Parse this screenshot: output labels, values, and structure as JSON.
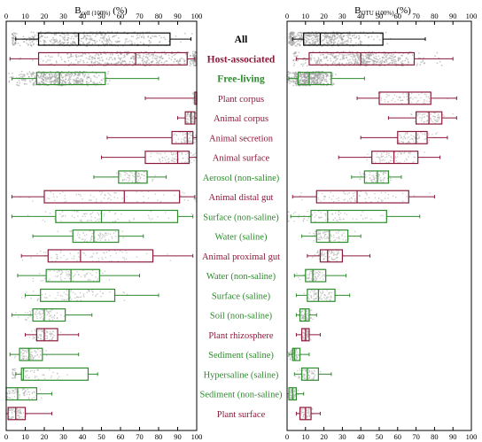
{
  "chart_data": {
    "type": "boxplot",
    "panels": [
      {
        "id": "bcell",
        "title_main": "B",
        "title_sub": "cell (100%)",
        "title_unit": " (%)",
        "xlim": [
          0,
          100
        ],
        "xticks": [
          0,
          10,
          20,
          30,
          40,
          50,
          60,
          70,
          80,
          90,
          100
        ]
      },
      {
        "id": "botu",
        "title_main": "B",
        "title_sub": "OTU (100%)",
        "title_unit": " (%)",
        "xlim": [
          0,
          100
        ],
        "xticks": [
          0,
          10,
          20,
          30,
          40,
          50,
          60,
          70,
          80,
          90,
          100
        ]
      }
    ],
    "group_colors": {
      "all": "#000000",
      "host": "#8b1a3a",
      "free": "#2e8b2e"
    },
    "categories": [
      {
        "label": "All",
        "group": "all",
        "bold": true,
        "bcell": {
          "wl": 5,
          "q1": 17,
          "med": 38,
          "q3": 86,
          "wh": 97
        },
        "botu": {
          "wl": 3,
          "q1": 9,
          "med": 18,
          "q3": 52,
          "wh": 75
        }
      },
      {
        "label": "Host-associated",
        "group": "host",
        "bold": true,
        "bcell": {
          "wl": 2,
          "q1": 17,
          "med": 68,
          "q3": 95,
          "wh": 99
        },
        "botu": {
          "wl": 5,
          "q1": 12,
          "med": 40,
          "q3": 69,
          "wh": 90
        }
      },
      {
        "label": "Free-living",
        "group": "free",
        "bold": true,
        "bcell": {
          "wl": 3,
          "q1": 16,
          "med": 28,
          "q3": 52,
          "wh": 80
        },
        "botu": {
          "wl": 1,
          "q1": 6,
          "med": 12,
          "q3": 24,
          "wh": 42
        }
      },
      {
        "label": "Plant corpus",
        "group": "host",
        "bold": false,
        "bcell": {
          "wl": 73,
          "q1": 99,
          "med": 100,
          "q3": 100,
          "wh": 100
        },
        "botu": {
          "wl": 38,
          "q1": 50,
          "med": 66,
          "q3": 78,
          "wh": 92
        }
      },
      {
        "label": "Animal corpus",
        "group": "host",
        "bold": false,
        "bcell": {
          "wl": 90,
          "q1": 94,
          "med": 97,
          "q3": 99,
          "wh": 100
        },
        "botu": {
          "wl": 55,
          "q1": 70,
          "med": 77,
          "q3": 84,
          "wh": 92
        }
      },
      {
        "label": "Animal secretion",
        "group": "host",
        "bold": false,
        "bcell": {
          "wl": 53,
          "q1": 87,
          "med": 95,
          "q3": 98,
          "wh": 100
        },
        "botu": {
          "wl": 40,
          "q1": 60,
          "med": 70,
          "q3": 76,
          "wh": 87
        }
      },
      {
        "label": "Animal surface",
        "group": "host",
        "bold": false,
        "bcell": {
          "wl": 50,
          "q1": 73,
          "med": 90,
          "q3": 96,
          "wh": 100
        },
        "botu": {
          "wl": 28,
          "q1": 46,
          "med": 58,
          "q3": 71,
          "wh": 83
        }
      },
      {
        "label": "Aerosol (non-saline)",
        "group": "free",
        "bold": false,
        "bcell": {
          "wl": 46,
          "q1": 59,
          "med": 68,
          "q3": 74,
          "wh": 84
        },
        "botu": {
          "wl": 35,
          "q1": 42,
          "med": 49,
          "q3": 55,
          "wh": 62
        }
      },
      {
        "label": "Animal distal gut",
        "group": "host",
        "bold": false,
        "bcell": {
          "wl": 3,
          "q1": 20,
          "med": 62,
          "q3": 91,
          "wh": 99
        },
        "botu": {
          "wl": 3,
          "q1": 16,
          "med": 38,
          "q3": 66,
          "wh": 80
        }
      },
      {
        "label": "Surface (non-saline)",
        "group": "free",
        "bold": false,
        "bcell": {
          "wl": 3,
          "q1": 26,
          "med": 50,
          "q3": 90,
          "wh": 98
        },
        "botu": {
          "wl": 2,
          "q1": 13,
          "med": 22,
          "q3": 54,
          "wh": 72
        }
      },
      {
        "label": "Water (saline)",
        "group": "free",
        "bold": false,
        "bcell": {
          "wl": 14,
          "q1": 35,
          "med": 46,
          "q3": 59,
          "wh": 72
        },
        "botu": {
          "wl": 8,
          "q1": 16,
          "med": 23,
          "q3": 33,
          "wh": 40
        }
      },
      {
        "label": "Animal proximal gut",
        "group": "host",
        "bold": false,
        "bcell": {
          "wl": 8,
          "q1": 22,
          "med": 39,
          "q3": 77,
          "wh": 98
        },
        "botu": {
          "wl": 11,
          "q1": 18,
          "med": 22,
          "q3": 30,
          "wh": 45
        }
      },
      {
        "label": "Water (non-saline)",
        "group": "free",
        "bold": false,
        "bcell": {
          "wl": 6,
          "q1": 21,
          "med": 34,
          "q3": 49,
          "wh": 70
        },
        "botu": {
          "wl": 4,
          "q1": 10,
          "med": 14,
          "q3": 21,
          "wh": 32
        }
      },
      {
        "label": "Surface (saline)",
        "group": "free",
        "bold": false,
        "bcell": {
          "wl": 10,
          "q1": 18,
          "med": 33,
          "q3": 57,
          "wh": 80
        },
        "botu": {
          "wl": 5,
          "q1": 11,
          "med": 17,
          "q3": 26,
          "wh": 34
        }
      },
      {
        "label": "Soil (non-saline)",
        "group": "free",
        "bold": false,
        "bcell": {
          "wl": 3,
          "q1": 14,
          "med": 20,
          "q3": 31,
          "wh": 45
        },
        "botu": {
          "wl": 5,
          "q1": 7,
          "med": 10,
          "q3": 12,
          "wh": 16
        }
      },
      {
        "label": "Plant rhizosphere",
        "group": "host",
        "bold": false,
        "bcell": {
          "wl": 10,
          "q1": 16,
          "med": 20,
          "q3": 27,
          "wh": 38
        },
        "botu": {
          "wl": 5,
          "q1": 8,
          "med": 10,
          "q3": 12,
          "wh": 18
        }
      },
      {
        "label": "Sediment (saline)",
        "group": "free",
        "bold": false,
        "bcell": {
          "wl": 2,
          "q1": 7,
          "med": 12,
          "q3": 19,
          "wh": 38
        },
        "botu": {
          "wl": 1,
          "q1": 3,
          "med": 4,
          "q3": 7,
          "wh": 12
        }
      },
      {
        "label": "Hypersaline (saline)",
        "group": "free",
        "bold": false,
        "bcell": {
          "wl": 5,
          "q1": 8,
          "med": 9,
          "q3": 43,
          "wh": 48
        },
        "botu": {
          "wl": 4,
          "q1": 8,
          "med": 11,
          "q3": 17,
          "wh": 24
        }
      },
      {
        "label": "Sediment (non-saline)",
        "group": "free",
        "bold": false,
        "bcell": {
          "wl": 0,
          "q1": 0,
          "med": 6,
          "q3": 16,
          "wh": 24
        },
        "botu": {
          "wl": 0,
          "q1": 1,
          "med": 3,
          "q3": 5,
          "wh": 9
        }
      },
      {
        "label": "Plant surface",
        "group": "host",
        "bold": false,
        "bcell": {
          "wl": 0,
          "q1": 1,
          "med": 5,
          "q3": 10,
          "wh": 24
        },
        "botu": {
          "wl": 5,
          "q1": 7,
          "med": 10,
          "q3": 13,
          "wh": 18
        }
      }
    ]
  }
}
